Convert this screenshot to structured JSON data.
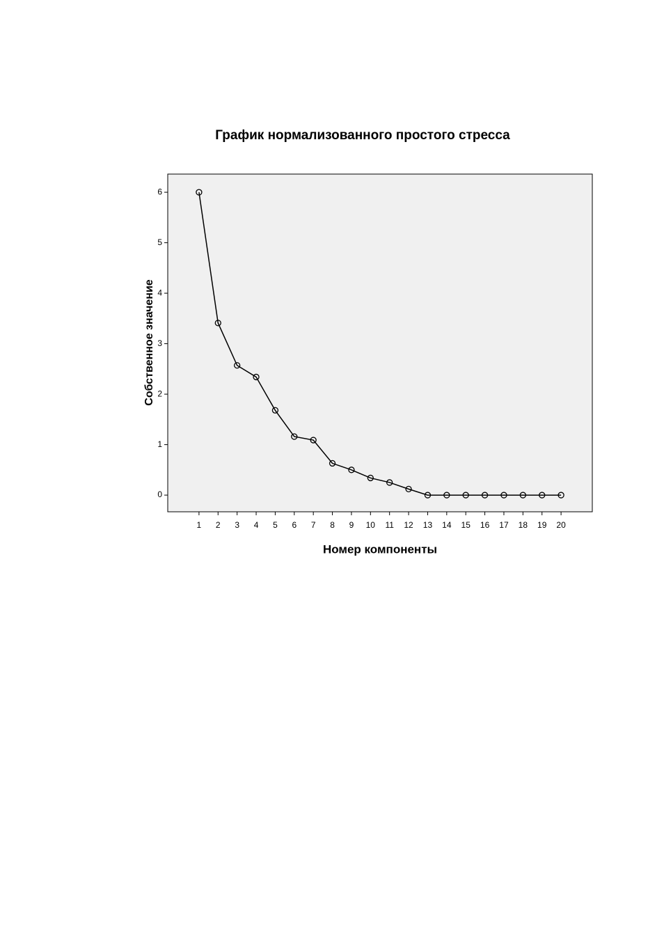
{
  "chart_data": {
    "type": "line",
    "title": "График нормализованного простого стресса",
    "x_label": "Номер компоненты",
    "y_label": "Собственное значение",
    "x": [
      1,
      2,
      3,
      4,
      5,
      6,
      7,
      8,
      9,
      10,
      11,
      12,
      13,
      14,
      15,
      16,
      17,
      18,
      19,
      20
    ],
    "series": [
      {
        "name": null,
        "color": "#000000",
        "values": [
          6.0,
          3.41,
          2.57,
          2.34,
          1.68,
          1.16,
          1.09,
          0.63,
          0.5,
          0.34,
          0.25,
          0.12,
          0,
          0,
          0,
          0,
          0,
          0,
          0,
          0
        ]
      }
    ],
    "xlim": [
      -0.64,
      21.64
    ],
    "xticks": [
      1,
      2,
      3,
      4,
      5,
      6,
      7,
      8,
      9,
      10,
      11,
      12,
      13,
      14,
      15,
      16,
      17,
      18,
      19,
      20
    ],
    "ylim": [
      -0.33,
      6.36
    ],
    "yticks": [
      0,
      1,
      2,
      3,
      4,
      5,
      6
    ],
    "background": "#f0f0f0",
    "grid": false
  }
}
